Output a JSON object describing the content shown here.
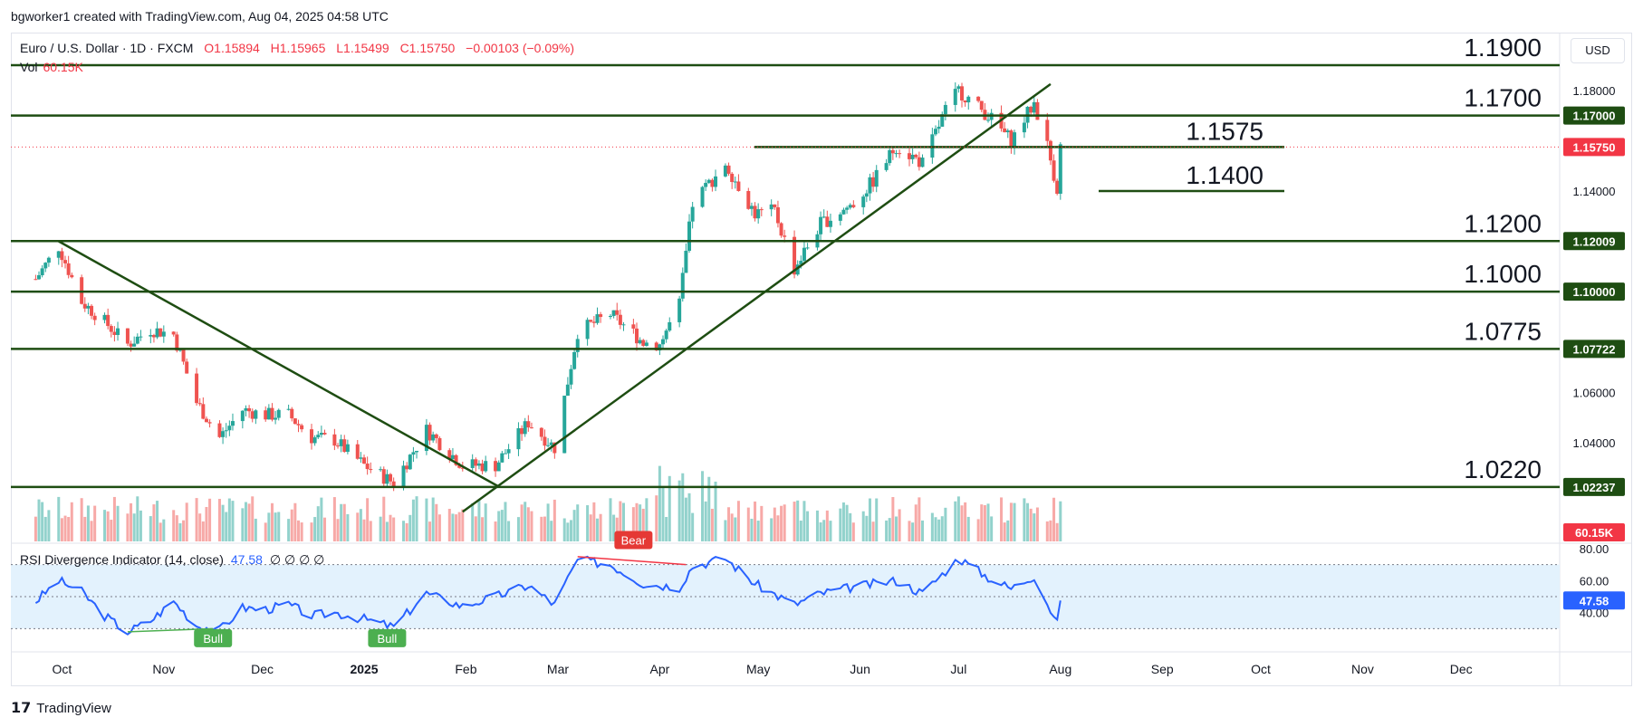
{
  "header": {
    "attribution": "bgworker1 created with TradingView.com, Aug 04, 2025 04:58 UTC"
  },
  "legend": {
    "symbol": "Euro / U.S. Dollar · 1D · FXCM",
    "open": "O1.15894",
    "high": "H1.15965",
    "low": "L1.15499",
    "close": "C1.15750",
    "change": "−0.00103 (−0.09%)"
  },
  "volume_legend": {
    "label": "Vol",
    "value": "60.15K"
  },
  "rsi_legend": {
    "label": "RSI Divergence Indicator (14, close)",
    "value": "47.58",
    "dots": "∅ ∅ ∅ ∅"
  },
  "currency": "USD",
  "footer": {
    "brand": "TradingView"
  },
  "colors": {
    "up": "#26a69a",
    "down": "#ef5350",
    "level_line": "#1e4d12",
    "rsi_line": "#2962ff",
    "rsi_band": "#e3f2fd",
    "bull": "#4caf50",
    "bear": "#f23645"
  },
  "chart_data": {
    "type": "candlestick",
    "title": "Euro / U.S. Dollar · 1D · FXCM",
    "ylim": [
      1.0,
      1.19
    ],
    "y_ticks": [
      "1.18000",
      "1.14000",
      "1.06000",
      "1.04000"
    ],
    "x_ticks": [
      "Oct",
      "Nov",
      "Dec",
      "2025",
      "Feb",
      "Mar",
      "Apr",
      "May",
      "Jun",
      "Jul",
      "Aug",
      "Sep",
      "Oct",
      "Nov",
      "Dec"
    ],
    "horizontal_levels": [
      {
        "label": "1.1900",
        "value": 1.19
      },
      {
        "label": "1.1700",
        "value": 1.17,
        "axis_label": "1.17000"
      },
      {
        "label": "1.1575",
        "value": 1.1575,
        "segment": true
      },
      {
        "label": "1.1400",
        "value": 1.14,
        "segment": true
      },
      {
        "label": "1.1200",
        "value": 1.12009,
        "axis_label": "1.12009"
      },
      {
        "label": "1.1000",
        "value": 1.1,
        "axis_label": "1.10000"
      },
      {
        "label": "1.0775",
        "value": 1.07722,
        "axis_label": "1.07722"
      },
      {
        "label": "1.0220",
        "value": 1.02237,
        "axis_label": "1.02237"
      }
    ],
    "last_price": {
      "value": 1.1575,
      "label": "1.15750"
    },
    "volume_last": "60.15K",
    "anchor_closes": [
      [
        "2024-09-23",
        1.105
      ],
      [
        "2024-09-30",
        1.118
      ],
      [
        "2024-10-07",
        1.096
      ],
      [
        "2024-10-14",
        1.088
      ],
      [
        "2024-10-21",
        1.079
      ],
      [
        "2024-10-28",
        1.085
      ],
      [
        "2024-11-04",
        1.083
      ],
      [
        "2024-11-11",
        1.056
      ],
      [
        "2024-11-18",
        1.042
      ],
      [
        "2024-11-25",
        1.053
      ],
      [
        "2024-12-02",
        1.051
      ],
      [
        "2024-12-09",
        1.051
      ],
      [
        "2024-12-16",
        1.042
      ],
      [
        "2024-12-23",
        1.041
      ],
      [
        "2025-01-01",
        1.031
      ],
      [
        "2025-01-10",
        1.024
      ],
      [
        "2025-01-20",
        1.045
      ],
      [
        "2025-01-31",
        1.031
      ],
      [
        "2025-02-10",
        1.031
      ],
      [
        "2025-02-20",
        1.048
      ],
      [
        "2025-02-28",
        1.038
      ],
      [
        "2025-03-07",
        1.084
      ],
      [
        "2025-03-17",
        1.091
      ],
      [
        "2025-03-27",
        1.08
      ],
      [
        "2025-04-01",
        1.079
      ],
      [
        "2025-04-07",
        1.095
      ],
      [
        "2025-04-11",
        1.135
      ],
      [
        "2025-04-21",
        1.151
      ],
      [
        "2025-04-30",
        1.131
      ],
      [
        "2025-05-06",
        1.132
      ],
      [
        "2025-05-12",
        1.109
      ],
      [
        "2025-05-20",
        1.127
      ],
      [
        "2025-05-30",
        1.135
      ],
      [
        "2025-06-05",
        1.144
      ],
      [
        "2025-06-12",
        1.158
      ],
      [
        "2025-06-20",
        1.151
      ],
      [
        "2025-06-27",
        1.172
      ],
      [
        "2025-07-01",
        1.18
      ],
      [
        "2025-07-10",
        1.17
      ],
      [
        "2025-07-17",
        1.16
      ],
      [
        "2025-07-24",
        1.175
      ],
      [
        "2025-07-28",
        1.158
      ],
      [
        "2025-07-31",
        1.141
      ],
      [
        "2025-08-01",
        1.1575
      ]
    ],
    "rsi": {
      "value": 47.58,
      "ylim": [
        20,
        80
      ],
      "y_ticks": [
        "80.00",
        "60.00",
        "40.00"
      ],
      "band": [
        30,
        70
      ],
      "labels": [
        {
          "text": "Bull",
          "date": "2024-11-16"
        },
        {
          "text": "Bull",
          "date": "2025-01-08"
        },
        {
          "text": "Bear",
          "date": "2025-03-24"
        }
      ],
      "anchor_values": [
        [
          "2024-09-23",
          47
        ],
        [
          "2024-09-30",
          60
        ],
        [
          "2024-10-07",
          53
        ],
        [
          "2024-10-14",
          38
        ],
        [
          "2024-10-21",
          28
        ],
        [
          "2024-10-28",
          35
        ],
        [
          "2024-11-04",
          47
        ],
        [
          "2024-11-11",
          32
        ],
        [
          "2024-11-18",
          29
        ],
        [
          "2024-11-25",
          43
        ],
        [
          "2024-12-02",
          42
        ],
        [
          "2024-12-09",
          45
        ],
        [
          "2024-12-16",
          38
        ],
        [
          "2024-12-23",
          40
        ],
        [
          "2025-01-01",
          36
        ],
        [
          "2025-01-10",
          31
        ],
        [
          "2025-01-20",
          52
        ],
        [
          "2025-01-31",
          44
        ],
        [
          "2025-02-10",
          50
        ],
        [
          "2025-02-20",
          57
        ],
        [
          "2025-02-28",
          45
        ],
        [
          "2025-03-07",
          73
        ],
        [
          "2025-03-17",
          70
        ],
        [
          "2025-03-27",
          58
        ],
        [
          "2025-04-07",
          56
        ],
        [
          "2025-04-11",
          69
        ],
        [
          "2025-04-21",
          74
        ],
        [
          "2025-04-30",
          58
        ],
        [
          "2025-05-12",
          45
        ],
        [
          "2025-05-20",
          52
        ],
        [
          "2025-05-30",
          56
        ],
        [
          "2025-06-12",
          60
        ],
        [
          "2025-06-20",
          52
        ],
        [
          "2025-07-01",
          74
        ],
        [
          "2025-07-10",
          62
        ],
        [
          "2025-07-17",
          55
        ],
        [
          "2025-07-24",
          63
        ],
        [
          "2025-07-31",
          33
        ],
        [
          "2025-08-01",
          47.58
        ]
      ]
    }
  }
}
